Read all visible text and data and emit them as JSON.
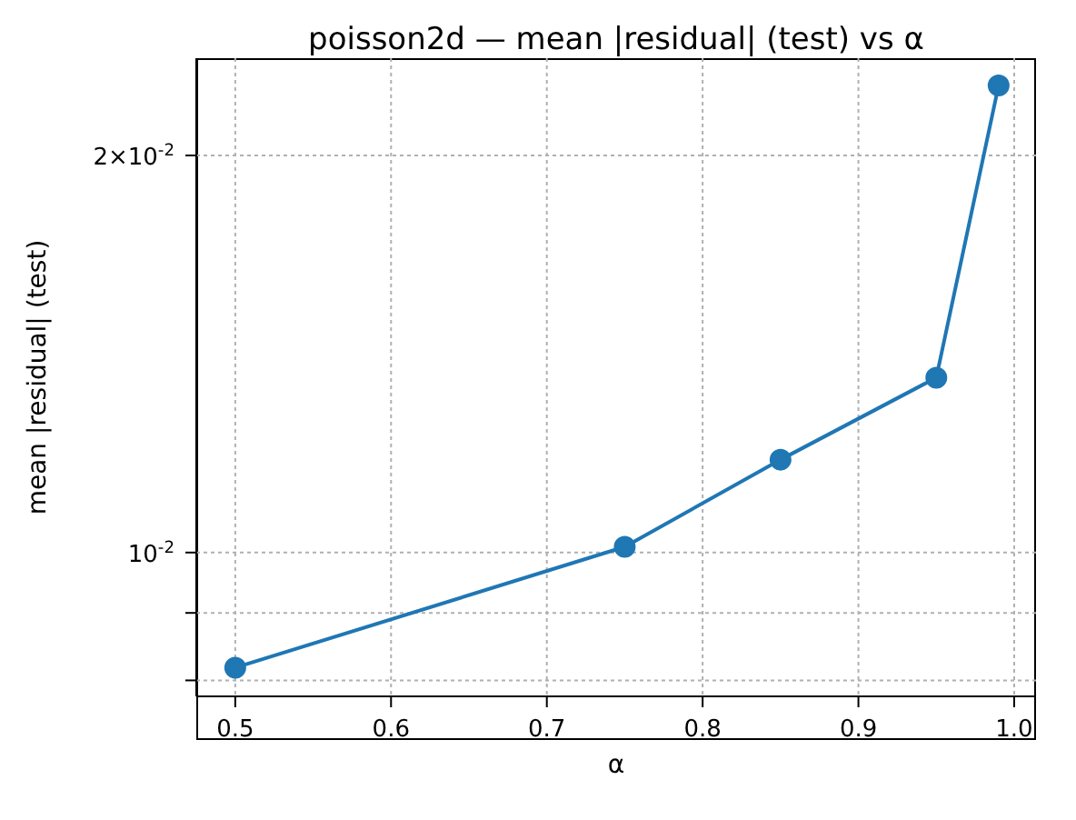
{
  "chart_data": {
    "type": "line",
    "title": "poisson2d — mean |residual| (test) vs α",
    "xlabel": "α",
    "ylabel": "mean |residual| (test)",
    "x": [
      0.5,
      0.75,
      0.85,
      0.95,
      0.99
    ],
    "series": [
      {
        "color": "#1f77b4",
        "values": [
          0.00818,
          0.0101,
          0.01176,
          0.01357,
          0.0226
        ]
      }
    ],
    "xlim": [
      0.475,
      1.014
    ],
    "xticks": [
      0.5,
      0.6,
      0.7,
      0.8,
      0.9,
      {
        "value": 1,
        "label": "1.0"
      }
    ],
    "ylim": [
      0.00778,
      0.0237
    ],
    "yticks": [
      {
        "value": 0.008,
        "label": null
      },
      {
        "value": 0.009,
        "label": null
      },
      {
        "value": 0.01,
        "label": "10$^{-2}$"
      },
      {
        "value": 0.02,
        "label": "2×10$^{-2}$"
      }
    ],
    "log": "y",
    "grid": true,
    "marker": "circle",
    "line_style": "solid"
  }
}
